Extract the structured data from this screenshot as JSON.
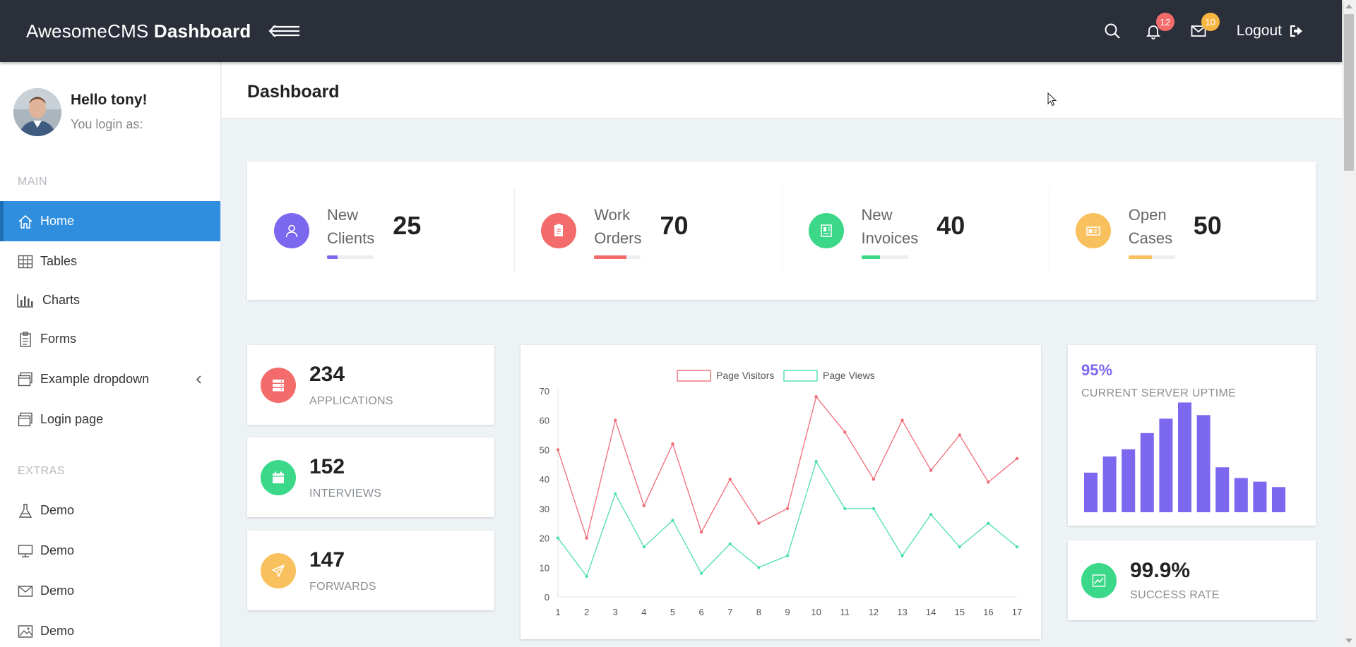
{
  "topbar": {
    "brand_light": "AwesomeCMS",
    "brand_bold": "Dashboard",
    "notifications_count": "12",
    "messages_count": "10",
    "logout_label": "Logout"
  },
  "profile": {
    "greeting": "Hello tony!",
    "login_as": "You login as:"
  },
  "sidebar": {
    "main_title": "MAIN",
    "items": [
      {
        "label": "Home",
        "icon": "home-icon"
      },
      {
        "label": "Tables",
        "icon": "table-icon"
      },
      {
        "label": "Charts",
        "icon": "bar-chart-icon"
      },
      {
        "label": "Forms",
        "icon": "clipboard-icon"
      },
      {
        "label": "Example dropdown",
        "icon": "window-icon"
      },
      {
        "label": "Login page",
        "icon": "window-icon"
      }
    ],
    "extras_title": "EXTRAS",
    "extras": [
      {
        "label": "Demo",
        "icon": "flask-icon"
      },
      {
        "label": "Demo",
        "icon": "monitor-icon"
      },
      {
        "label": "Demo",
        "icon": "mail-icon"
      },
      {
        "label": "Demo",
        "icon": "image-icon"
      }
    ]
  },
  "page": {
    "title": "Dashboard"
  },
  "stats": [
    {
      "line1": "New",
      "line2": "Clients",
      "value": "25",
      "progress": 0.22,
      "color": "#7b68ee"
    },
    {
      "line1": "Work",
      "line2": "Orders",
      "value": "70",
      "progress": 0.7,
      "color": "#f36b6b"
    },
    {
      "line1": "New",
      "line2": "Invoices",
      "value": "40",
      "progress": 0.4,
      "color": "#3ad888"
    },
    {
      "line1": "Open",
      "line2": "Cases",
      "value": "50",
      "progress": 0.5,
      "color": "#f9c15d"
    }
  ],
  "mini": [
    {
      "value": "234",
      "label": "APPLICATIONS",
      "color": "#f36b6b"
    },
    {
      "value": "152",
      "label": "INTERVIEWS",
      "color": "#3ad888"
    },
    {
      "value": "147",
      "label": "FORWARDS",
      "color": "#f9c15d"
    }
  ],
  "uptime": {
    "value": "95%",
    "label": "CURRENT SERVER UPTIME",
    "bar_color": "#7b68ee"
  },
  "success": {
    "value": "99.9%",
    "label": "SUCCESS RATE",
    "color": "#3ad888"
  },
  "chart_data": [
    {
      "type": "line",
      "x": [
        1,
        2,
        3,
        4,
        5,
        6,
        7,
        8,
        9,
        10,
        11,
        12,
        13,
        14,
        15,
        16,
        17
      ],
      "ylim": [
        0,
        70
      ],
      "yticks": [
        0,
        10,
        20,
        30,
        40,
        50,
        60,
        70
      ],
      "legend_position": "top-center",
      "grid": false,
      "series": [
        {
          "name": "Page Visitors",
          "color": "#f06b78",
          "values": [
            50,
            20,
            60,
            31,
            52,
            22,
            40,
            25,
            30,
            68,
            56,
            40,
            60,
            43,
            55,
            39,
            47
          ]
        },
        {
          "name": "Page Views",
          "color": "#4fe0a8",
          "values": [
            20,
            7,
            35,
            17,
            26,
            8,
            18,
            10,
            14,
            46,
            30,
            30,
            14,
            28,
            17,
            25,
            17
          ]
        }
      ]
    },
    {
      "type": "bar",
      "values": [
        11,
        15.5,
        17.5,
        22,
        26,
        30.5,
        27,
        12.5,
        9.5,
        8.5,
        7
      ],
      "color": "#7b68ee"
    }
  ]
}
